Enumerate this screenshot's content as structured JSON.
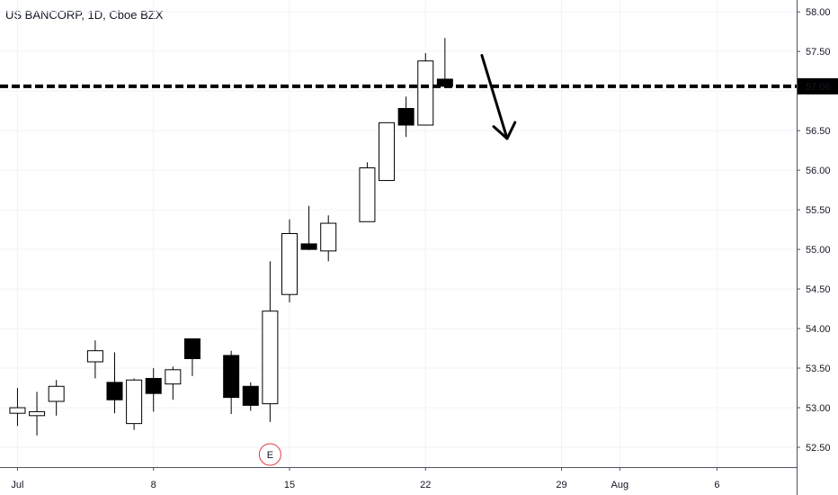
{
  "header": {
    "symbol": "US BANCORP",
    "interval": "1D",
    "exchange": "Cboe BZX"
  },
  "chart_data": {
    "type": "candlestick",
    "title": "US BANCORP, 1D, Cboe BZX",
    "x_tick_labels": [
      {
        "day": 0,
        "label": "Jul"
      },
      {
        "day": 7,
        "label": "8"
      },
      {
        "day": 14,
        "label": "15"
      },
      {
        "day": 21,
        "label": "22"
      },
      {
        "day": 28,
        "label": "29"
      },
      {
        "day": 31,
        "label": "Aug"
      },
      {
        "day": 36,
        "label": "6"
      }
    ],
    "y_tick_labels": [
      "52.50",
      "53.00",
      "53.50",
      "54.00",
      "54.50",
      "55.00",
      "55.50",
      "56.00",
      "56.50",
      "57.00",
      "57.50",
      "58.00"
    ],
    "ylim": [
      52.25,
      58.15
    ],
    "xlim": [
      -0.9,
      40.1
    ],
    "grid": true,
    "candles": [
      {
        "day": 0,
        "open": 52.93,
        "high": 53.25,
        "low": 52.77,
        "close": 53.0
      },
      {
        "day": 1,
        "open": 52.9,
        "high": 53.2,
        "low": 52.65,
        "close": 52.95
      },
      {
        "day": 2,
        "open": 53.08,
        "high": 53.35,
        "low": 52.9,
        "close": 53.27
      },
      {
        "day": 4,
        "open": 53.58,
        "high": 53.85,
        "low": 53.37,
        "close": 53.72
      },
      {
        "day": 5,
        "open": 53.32,
        "high": 53.7,
        "low": 52.93,
        "close": 53.1
      },
      {
        "day": 6,
        "open": 52.8,
        "high": 53.37,
        "low": 52.72,
        "close": 53.35
      },
      {
        "day": 7,
        "open": 53.37,
        "high": 53.5,
        "low": 52.95,
        "close": 53.18
      },
      {
        "day": 8,
        "open": 53.3,
        "high": 53.52,
        "low": 53.1,
        "close": 53.48
      },
      {
        "day": 9,
        "open": 53.87,
        "high": 53.87,
        "low": 53.4,
        "close": 53.62
      },
      {
        "day": 11,
        "open": 53.66,
        "high": 53.72,
        "low": 52.92,
        "close": 53.13
      },
      {
        "day": 12,
        "open": 53.27,
        "high": 53.32,
        "low": 52.96,
        "close": 53.03
      },
      {
        "day": 13,
        "open": 53.05,
        "high": 54.85,
        "low": 52.82,
        "close": 54.22
      },
      {
        "day": 14,
        "open": 54.43,
        "high": 55.38,
        "low": 54.33,
        "close": 55.2
      },
      {
        "day": 15,
        "open": 55.07,
        "high": 55.55,
        "low": 54.99,
        "close": 55.0
      },
      {
        "day": 16,
        "open": 54.98,
        "high": 55.43,
        "low": 54.85,
        "close": 55.33
      },
      {
        "day": 18,
        "open": 55.35,
        "high": 56.1,
        "low": 55.35,
        "close": 56.03
      },
      {
        "day": 19,
        "open": 55.87,
        "high": 56.6,
        "low": 55.87,
        "close": 56.6
      },
      {
        "day": 20,
        "open": 56.78,
        "high": 56.93,
        "low": 56.42,
        "close": 56.57
      },
      {
        "day": 21,
        "open": 56.57,
        "high": 57.48,
        "low": 56.57,
        "close": 57.38
      },
      {
        "day": 22,
        "open": 57.15,
        "high": 57.67,
        "low": 57.05,
        "close": 57.06
      }
    ],
    "horizontal_line": {
      "value": 57.06,
      "style": "dashed",
      "color": "#000000"
    },
    "price_label": "57.06",
    "annotations": [
      {
        "type": "arrow",
        "direction": "down",
        "from": {
          "day": 23.9,
          "value": 57.45
        },
        "to": {
          "day": 25.2,
          "value": 56.4
        }
      },
      {
        "type": "earnings-marker",
        "text": "E",
        "day": 13
      }
    ],
    "colors": {
      "up_body": "#ffffff",
      "down_body": "#000000",
      "outline": "#000000",
      "grid": "#f0f3fa",
      "earnings": "#e0404a"
    }
  }
}
